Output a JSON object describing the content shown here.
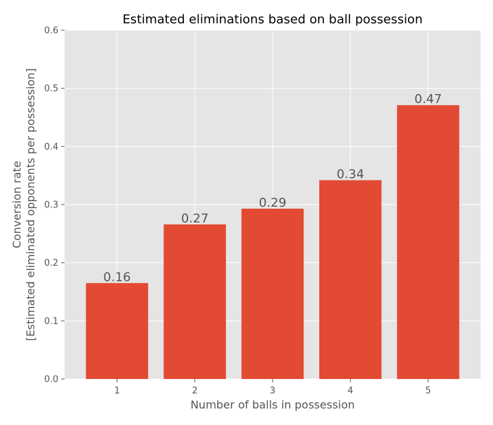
{
  "chart_data": {
    "type": "bar",
    "title": "Estimated eliminations based on ball possession",
    "xlabel": "Number of balls in possession",
    "ylabel_lines": [
      "Conversion rate",
      "[Estimated eliminated opponents per possession]"
    ],
    "categories": [
      "1",
      "2",
      "3",
      "4",
      "5"
    ],
    "values": [
      0.165,
      0.266,
      0.293,
      0.342,
      0.471
    ],
    "value_labels": [
      "0.16",
      "0.27",
      "0.29",
      "0.34",
      "0.47"
    ],
    "ylim": [
      0,
      0.6
    ],
    "yticks": [
      0.0,
      0.1,
      0.2,
      0.3,
      0.4,
      0.5,
      0.6
    ],
    "ytick_labels": [
      "0.0",
      "0.1",
      "0.2",
      "0.3",
      "0.4",
      "0.5",
      "0.6"
    ],
    "grid": true,
    "colors": {
      "bar": "#E24A33",
      "plot_background": "#E5E5E5",
      "grid": "#FFFFFF",
      "text": "#555555"
    }
  }
}
